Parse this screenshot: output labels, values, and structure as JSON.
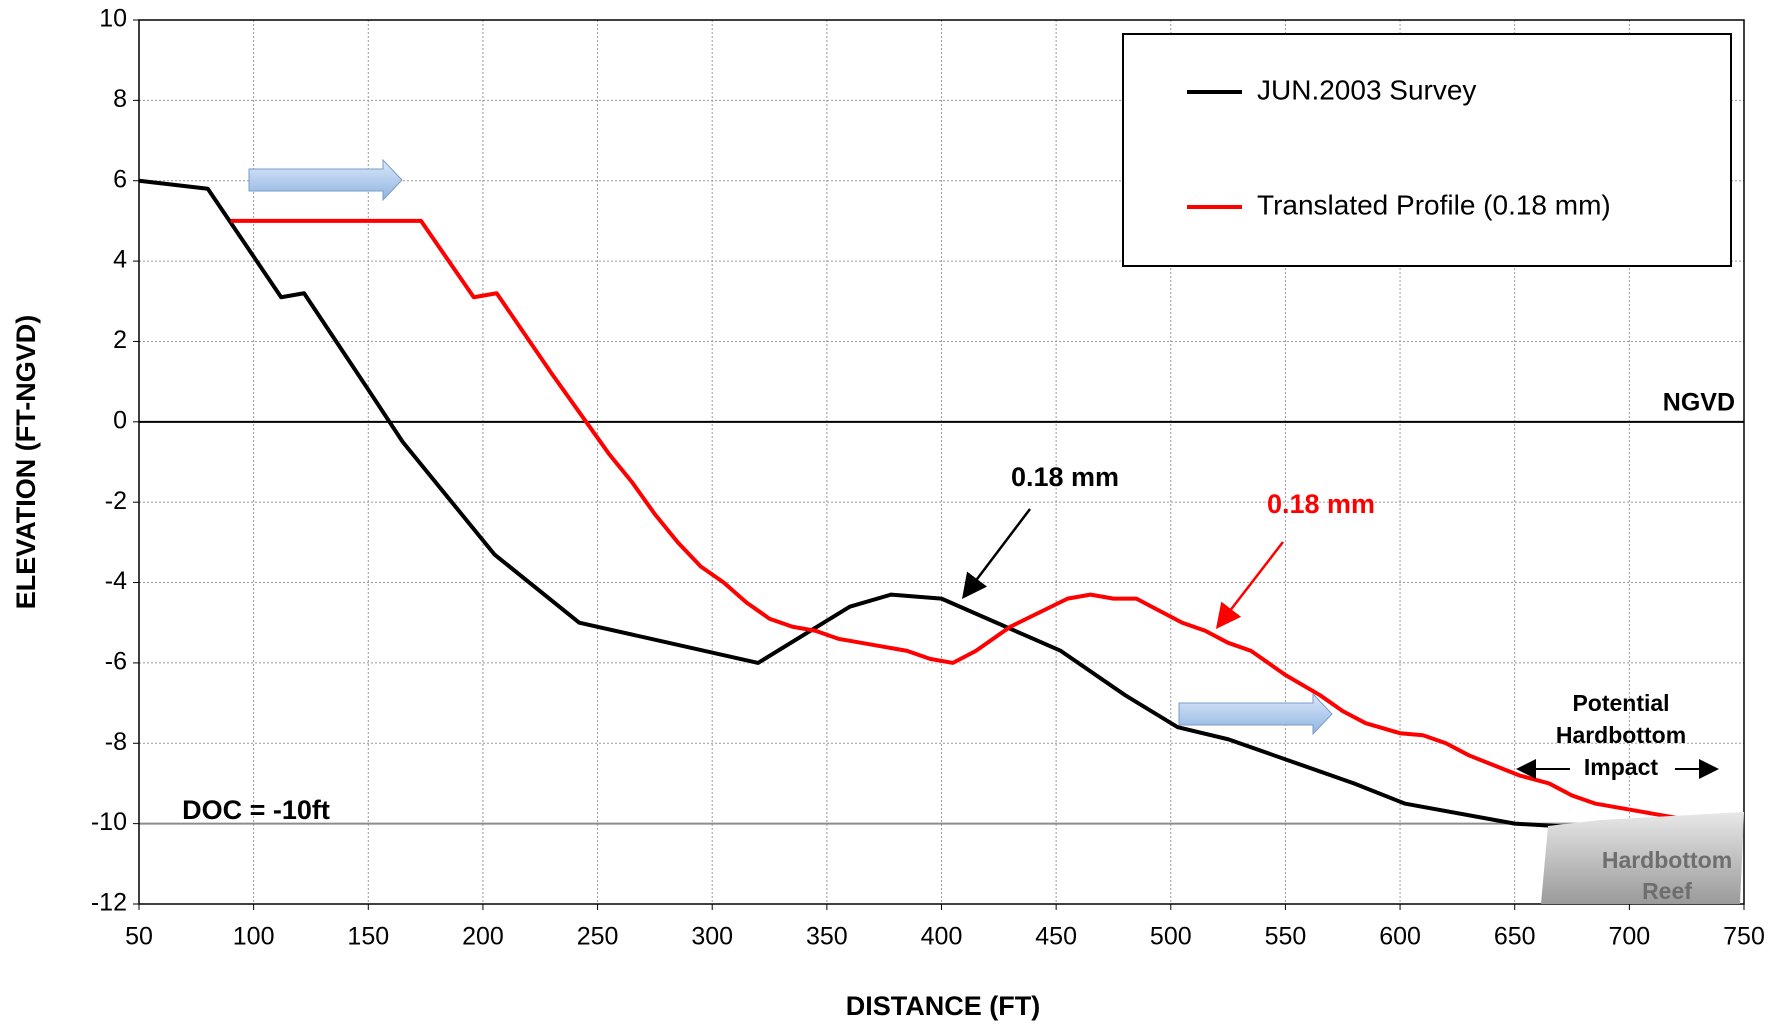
{
  "chart_data": {
    "type": "line",
    "x_label": "DISTANCE (FT)",
    "y_label": "ELEVATION (FT-NGVD)",
    "xlim": [
      50,
      750
    ],
    "xticks": [
      50,
      100,
      150,
      200,
      250,
      300,
      350,
      400,
      450,
      500,
      550,
      600,
      650,
      700,
      750
    ],
    "ylim": [
      -12,
      10
    ],
    "yticks": [
      -12,
      -10,
      -8,
      -6,
      -4,
      -2,
      0,
      2,
      4,
      6,
      8,
      10
    ],
    "grid": true,
    "legend": "upper right",
    "reference_lines": [
      {
        "y": 0,
        "color": "#000000"
      },
      {
        "y": -10,
        "color": "#8c8c8c"
      }
    ],
    "series": [
      {
        "name": "JUN.2003 Survey",
        "color": "#000000",
        "x": [
          50,
          80,
          112,
          122,
          150,
          165,
          205,
          242,
          320,
          360,
          378,
          400,
          452,
          480,
          503,
          525,
          555,
          580,
          602,
          650,
          680
        ],
        "values": [
          6,
          5.8,
          3.1,
          3.2,
          0.8,
          -0.5,
          -3.3,
          -5,
          -6,
          -4.6,
          -4.3,
          -4.4,
          -5.7,
          -6.8,
          -7.6,
          -7.9,
          -8.5,
          -9,
          -9.5,
          -10,
          -10.1
        ]
      },
      {
        "name": "Translated Profile (0.18 mm)",
        "color": "#ff0000",
        "x": [
          90,
          173,
          196,
          206,
          230,
          245,
          255,
          265,
          275,
          285,
          295,
          305,
          315,
          325,
          335,
          345,
          355,
          365,
          385,
          395,
          405,
          415,
          430,
          455,
          465,
          475,
          485,
          505,
          515,
          525,
          535,
          550,
          565,
          575,
          585,
          600,
          610,
          620,
          630,
          652,
          665,
          675,
          685,
          705,
          735
        ],
        "values": [
          5,
          5,
          3.1,
          3.2,
          1.2,
          0,
          -0.8,
          -1.5,
          -2.3,
          -3,
          -3.6,
          -4,
          -4.5,
          -4.9,
          -5.1,
          -5.2,
          -5.4,
          -5.5,
          -5.7,
          -5.9,
          -6,
          -5.7,
          -5.1,
          -4.4,
          -4.3,
          -4.4,
          -4.4,
          -5,
          -5.2,
          -5.5,
          -5.7,
          -6.3,
          -6.8,
          -7.2,
          -7.5,
          -7.75,
          -7.8,
          -8,
          -8.3,
          -8.8,
          -9,
          -9.3,
          -9.5,
          -9.7,
          -10
        ]
      }
    ],
    "annotations": {
      "ngvd": "NGVD",
      "black_shift": "0.18 mm",
      "red_shift": "0.18 mm",
      "doc": "DOC = -10ft",
      "impact": [
        "Potential",
        "Hardbottom",
        "Impact"
      ],
      "reef": [
        "Hardbottom",
        "Reef"
      ]
    }
  }
}
